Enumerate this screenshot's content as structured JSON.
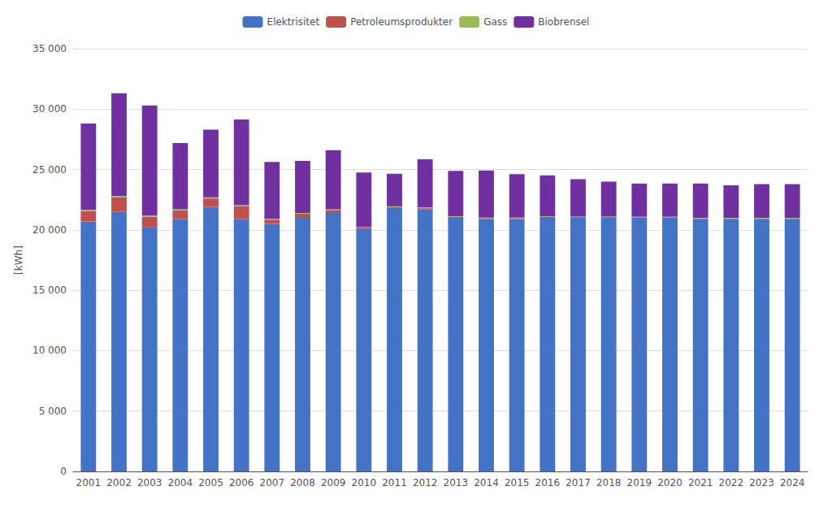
{
  "chart_data": {
    "type": "bar",
    "stacked": true,
    "categories": [
      "2001",
      "2002",
      "2003",
      "2004",
      "2005",
      "2006",
      "2007",
      "2008",
      "2009",
      "2010",
      "2011",
      "2012",
      "2013",
      "2014",
      "2015",
      "2016",
      "2017",
      "2018",
      "2019",
      "2020",
      "2021",
      "2022",
      "2023",
      "2024"
    ],
    "series": [
      {
        "name": "Elektrisitet",
        "color": "#4472C4",
        "values": [
          20700,
          21500,
          20200,
          20900,
          21900,
          20900,
          20500,
          21000,
          21400,
          20100,
          21800,
          21700,
          21000,
          20900,
          20900,
          21000,
          21000,
          21000,
          21000,
          21000,
          20900,
          20900,
          20900,
          20900
        ]
      },
      {
        "name": "Petroleumsprodukter",
        "color": "#C0504D",
        "values": [
          850,
          1200,
          900,
          700,
          700,
          1050,
          350,
          350,
          250,
          100,
          100,
          100,
          100,
          80,
          80,
          80,
          60,
          60,
          50,
          50,
          50,
          50,
          50,
          50
        ]
      },
      {
        "name": "Gass",
        "color": "#9BBB59",
        "values": [
          100,
          120,
          100,
          100,
          100,
          100,
          80,
          60,
          60,
          50,
          50,
          50,
          40,
          40,
          40,
          40,
          40,
          40,
          40,
          40,
          40,
          40,
          40,
          40
        ]
      },
      {
        "name": "Biobrensel",
        "color": "#7030A0",
        "values": [
          7150,
          8500,
          9100,
          5500,
          5600,
          7100,
          4700,
          4300,
          4900,
          4500,
          2700,
          4000,
          3750,
          3900,
          3600,
          3400,
          3100,
          2900,
          2750,
          2750,
          2850,
          2700,
          2800,
          2800
        ]
      }
    ],
    "ylabel": "[kWh]",
    "ylim": [
      0,
      35000
    ],
    "yticks": [
      0,
      {
        "value": 5000,
        "label": "5 000"
      },
      {
        "value": 10000,
        "label": "10 000"
      },
      {
        "value": 15000,
        "label": "15 000"
      },
      {
        "value": 20000,
        "label": "20 000"
      },
      {
        "value": 25000,
        "label": "25 000"
      },
      {
        "value": 30000,
        "label": "30 000"
      },
      {
        "value": 35000,
        "label": "35 000"
      }
    ],
    "grid": true,
    "legend": "top"
  }
}
